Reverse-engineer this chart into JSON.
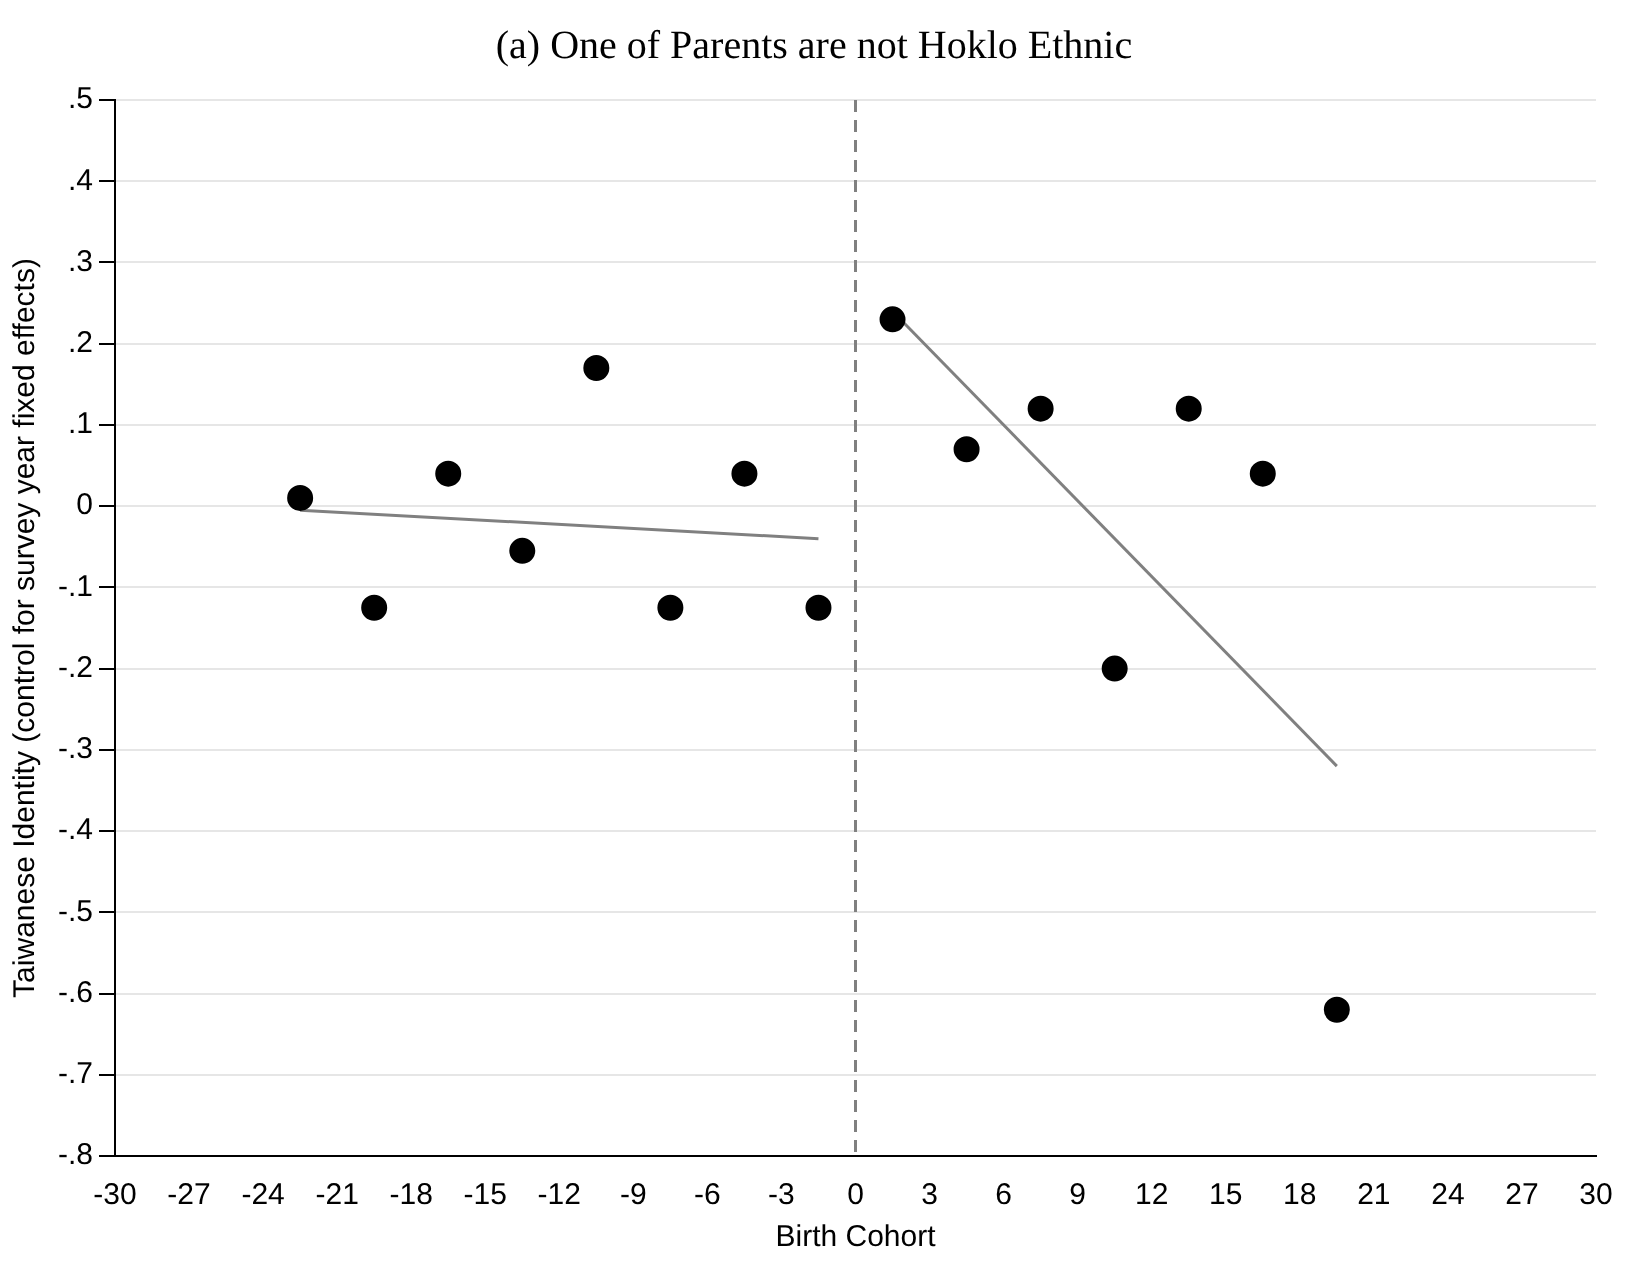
{
  "chart_data": {
    "type": "scatter",
    "title": "(a) One of Parents are not Hoklo Ethnic",
    "xlabel": "Birth Cohort",
    "ylabel": "Taiwanese Identity (control for survey year fixed effects)",
    "series": [
      {
        "color": "#000000",
        "marker": "circle",
        "x": [
          -22.5,
          -19.5,
          -16.5,
          -13.5,
          -10.5,
          -7.5,
          -4.5,
          -1.5,
          1.5,
          4.5,
          7.5,
          10.5,
          13.5,
          16.5,
          19.5
        ],
        "values": [
          0.01,
          -0.125,
          0.04,
          -0.055,
          0.17,
          -0.125,
          0.04,
          -0.125,
          0.23,
          0.07,
          0.12,
          -0.2,
          0.12,
          0.04,
          -0.62
        ]
      },
      {
        "type": "line",
        "color": "#808080",
        "marker": "none",
        "x": [
          -22.5,
          -1.5
        ],
        "values": [
          -0.005,
          -0.04
        ]
      },
      {
        "type": "line",
        "color": "#808080",
        "marker": "none",
        "x": [
          1.5,
          19.5
        ],
        "values": [
          0.24,
          -0.32
        ]
      }
    ],
    "xlim": [
      -30,
      30
    ],
    "xticks": [
      -30,
      -27,
      -24,
      -21,
      -18,
      -15,
      -12,
      -9,
      -6,
      -3,
      0,
      3,
      6,
      9,
      12,
      15,
      18,
      21,
      24,
      27,
      30
    ],
    "ylim": [
      -0.8,
      0.5
    ],
    "yticks": [
      {
        "value": -0.8,
        "label": "-.8"
      },
      {
        "value": -0.7,
        "label": "-.7"
      },
      {
        "value": -0.6,
        "label": "-.6"
      },
      {
        "value": -0.5,
        "label": "-.5"
      },
      {
        "value": -0.4,
        "label": "-.4"
      },
      {
        "value": -0.3,
        "label": "-.3"
      },
      {
        "value": -0.2,
        "label": "-.2"
      },
      {
        "value": -0.1,
        "label": "-.1"
      },
      0,
      {
        "value": 0.1,
        "label": ".1"
      },
      {
        "value": 0.2,
        "label": ".2"
      },
      {
        "value": 0.3,
        "label": ".3"
      },
      {
        "value": 0.4,
        "label": ".4"
      },
      {
        "value": 0.5,
        "label": ".5"
      }
    ],
    "ref_lines": [
      {
        "axis": "x",
        "value": 0,
        "color": "#808080",
        "line_style": "dashed"
      }
    ],
    "grid": "y",
    "legend": false
  }
}
